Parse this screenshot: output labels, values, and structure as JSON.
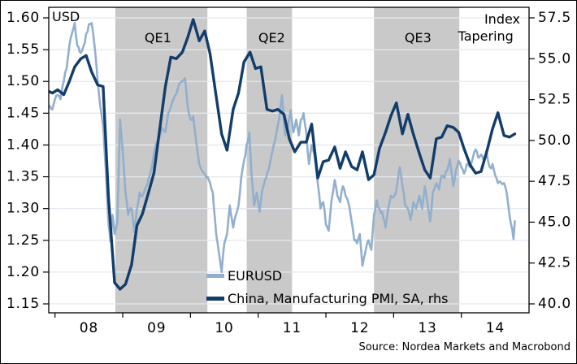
{
  "axis_units": {
    "left": "USD",
    "right": "Index"
  },
  "source": "Source: Nordea Markets and Macrobond",
  "legend": [
    {
      "label": "EURUSD",
      "color": "#92AFCE"
    },
    {
      "label": "China, Manufacturing PMI, SA, rhs",
      "color": "#123D6B"
    }
  ],
  "annotations": [
    {
      "label": "QE1",
      "x_year": 2009.52
    },
    {
      "label": "QE2",
      "x_year": 2011.2
    },
    {
      "label": "QE3",
      "x_year": 2013.36
    },
    {
      "label": "Tapering",
      "x_year": 2014.36
    }
  ],
  "colors": {
    "eurusd_line": "#92AFCE",
    "pmi_line": "#123D6B",
    "shading": "#C9C9C9",
    "gridline": "#E3E9EF",
    "axis": "#000000",
    "background": "#FFFFFF"
  },
  "chart_data": {
    "type": "line",
    "title": "",
    "grid": true,
    "left_axis": {
      "unit": "USD",
      "min": 1.15,
      "max": 1.6,
      "step": 0.05,
      "tick_labels": [
        "1.60",
        "1.55",
        "1.50",
        "1.45",
        "1.40",
        "1.35",
        "1.30",
        "1.25",
        "1.20",
        "1.15"
      ]
    },
    "right_axis": {
      "unit": "Index",
      "min": 40.0,
      "max": 57.5,
      "step": 2.5,
      "tick_labels": [
        "57.5",
        "55.0",
        "52.5",
        "50.0",
        "47.5",
        "45.0",
        "42.5",
        "40.0"
      ]
    },
    "x_axis": {
      "domain_years": [
        2007.91,
        2015.0
      ],
      "tick_years": [
        2008,
        2009,
        2010,
        2011,
        2012,
        2013,
        2014
      ],
      "tick_labels": [
        "08",
        "09",
        "10",
        "11",
        "12",
        "13",
        "14"
      ]
    },
    "shaded_periods": [
      {
        "label": "QE1",
        "from": 2008.89,
        "to": 2010.25
      },
      {
        "label": "QE2",
        "from": 2010.83,
        "to": 2011.5
      },
      {
        "label": "QE3",
        "from": 2012.71,
        "to": 2013.97
      }
    ],
    "series": [
      {
        "name": "EURUSD",
        "axis": "left",
        "color": "#92AFCE",
        "width": 2.6,
        "noisy": true,
        "points": [
          [
            2007.91,
            1.462
          ],
          [
            2007.96,
            1.456
          ],
          [
            2008.0,
            1.472
          ],
          [
            2008.04,
            1.478
          ],
          [
            2008.08,
            1.472
          ],
          [
            2008.13,
            1.5
          ],
          [
            2008.17,
            1.52
          ],
          [
            2008.21,
            1.555
          ],
          [
            2008.25,
            1.575
          ],
          [
            2008.29,
            1.592
          ],
          [
            2008.33,
            1.556
          ],
          [
            2008.38,
            1.545
          ],
          [
            2008.42,
            1.555
          ],
          [
            2008.46,
            1.575
          ],
          [
            2008.5,
            1.59
          ],
          [
            2008.54,
            1.592
          ],
          [
            2008.58,
            1.56
          ],
          [
            2008.63,
            1.5
          ],
          [
            2008.67,
            1.46
          ],
          [
            2008.71,
            1.43
          ],
          [
            2008.75,
            1.36
          ],
          [
            2008.79,
            1.275
          ],
          [
            2008.82,
            1.248
          ],
          [
            2008.85,
            1.29
          ],
          [
            2008.88,
            1.26
          ],
          [
            2008.92,
            1.28
          ],
          [
            2008.96,
            1.44
          ],
          [
            2009.0,
            1.39
          ],
          [
            2009.04,
            1.325
          ],
          [
            2009.08,
            1.29
          ],
          [
            2009.13,
            1.3
          ],
          [
            2009.17,
            1.263
          ],
          [
            2009.21,
            1.3
          ],
          [
            2009.25,
            1.325
          ],
          [
            2009.29,
            1.32
          ],
          [
            2009.33,
            1.33
          ],
          [
            2009.38,
            1.345
          ],
          [
            2009.42,
            1.36
          ],
          [
            2009.46,
            1.385
          ],
          [
            2009.5,
            1.403
          ],
          [
            2009.54,
            1.41
          ],
          [
            2009.58,
            1.427
          ],
          [
            2009.63,
            1.42
          ],
          [
            2009.67,
            1.45
          ],
          [
            2009.71,
            1.46
          ],
          [
            2009.75,
            1.472
          ],
          [
            2009.79,
            1.48
          ],
          [
            2009.83,
            1.495
          ],
          [
            2009.88,
            1.5
          ],
          [
            2009.92,
            1.505
          ],
          [
            2009.96,
            1.46
          ],
          [
            2010.0,
            1.44
          ],
          [
            2010.04,
            1.445
          ],
          [
            2010.08,
            1.41
          ],
          [
            2010.13,
            1.37
          ],
          [
            2010.17,
            1.36
          ],
          [
            2010.21,
            1.355
          ],
          [
            2010.25,
            1.35
          ],
          [
            2010.29,
            1.34
          ],
          [
            2010.33,
            1.325
          ],
          [
            2010.38,
            1.26
          ],
          [
            2010.42,
            1.23
          ],
          [
            2010.46,
            1.2
          ],
          [
            2010.5,
            1.245
          ],
          [
            2010.54,
            1.26
          ],
          [
            2010.58,
            1.305
          ],
          [
            2010.63,
            1.27
          ],
          [
            2010.67,
            1.29
          ],
          [
            2010.71,
            1.305
          ],
          [
            2010.75,
            1.35
          ],
          [
            2010.79,
            1.375
          ],
          [
            2010.83,
            1.4
          ],
          [
            2010.87,
            1.42
          ],
          [
            2010.9,
            1.355
          ],
          [
            2010.94,
            1.305
          ],
          [
            2010.98,
            1.325
          ],
          [
            2011.02,
            1.295
          ],
          [
            2011.06,
            1.33
          ],
          [
            2011.1,
            1.345
          ],
          [
            2011.15,
            1.36
          ],
          [
            2011.19,
            1.38
          ],
          [
            2011.23,
            1.4
          ],
          [
            2011.27,
            1.42
          ],
          [
            2011.31,
            1.44
          ],
          [
            2011.35,
            1.478
          ],
          [
            2011.4,
            1.415
          ],
          [
            2011.44,
            1.43
          ],
          [
            2011.48,
            1.455
          ],
          [
            2011.52,
            1.42
          ],
          [
            2011.56,
            1.44
          ],
          [
            2011.6,
            1.415
          ],
          [
            2011.63,
            1.44
          ],
          [
            2011.67,
            1.45
          ],
          [
            2011.71,
            1.42
          ],
          [
            2011.75,
            1.37
          ],
          [
            2011.79,
            1.4
          ],
          [
            2011.83,
            1.385
          ],
          [
            2011.88,
            1.34
          ],
          [
            2011.92,
            1.3
          ],
          [
            2011.96,
            1.31
          ],
          [
            2012.0,
            1.275
          ],
          [
            2012.04,
            1.265
          ],
          [
            2012.08,
            1.31
          ],
          [
            2012.13,
            1.345
          ],
          [
            2012.17,
            1.32
          ],
          [
            2012.21,
            1.31
          ],
          [
            2012.25,
            1.335
          ],
          [
            2012.29,
            1.32
          ],
          [
            2012.33,
            1.31
          ],
          [
            2012.38,
            1.28
          ],
          [
            2012.42,
            1.25
          ],
          [
            2012.46,
            1.245
          ],
          [
            2012.5,
            1.26
          ],
          [
            2012.54,
            1.21
          ],
          [
            2012.58,
            1.23
          ],
          [
            2012.63,
            1.25
          ],
          [
            2012.67,
            1.235
          ],
          [
            2012.71,
            1.29
          ],
          [
            2012.75,
            1.313
          ],
          [
            2012.79,
            1.3
          ],
          [
            2012.83,
            1.295
          ],
          [
            2012.88,
            1.27
          ],
          [
            2012.92,
            1.3
          ],
          [
            2012.96,
            1.32
          ],
          [
            2013.0,
            1.318
          ],
          [
            2013.04,
            1.33
          ],
          [
            2013.09,
            1.365
          ],
          [
            2013.13,
            1.335
          ],
          [
            2013.17,
            1.305
          ],
          [
            2013.21,
            1.3
          ],
          [
            2013.25,
            1.282
          ],
          [
            2013.29,
            1.31
          ],
          [
            2013.33,
            1.3
          ],
          [
            2013.38,
            1.32
          ],
          [
            2013.42,
            1.3
          ],
          [
            2013.46,
            1.335
          ],
          [
            2013.5,
            1.308
          ],
          [
            2013.54,
            1.28
          ],
          [
            2013.58,
            1.325
          ],
          [
            2013.63,
            1.34
          ],
          [
            2013.67,
            1.33
          ],
          [
            2013.71,
            1.352
          ],
          [
            2013.75,
            1.348
          ],
          [
            2013.79,
            1.36
          ],
          [
            2013.83,
            1.378
          ],
          [
            2013.88,
            1.335
          ],
          [
            2013.92,
            1.36
          ],
          [
            2013.96,
            1.375
          ],
          [
            2014.0,
            1.365
          ],
          [
            2014.04,
            1.355
          ],
          [
            2014.08,
            1.37
          ],
          [
            2014.13,
            1.365
          ],
          [
            2014.17,
            1.38
          ],
          [
            2014.21,
            1.393
          ],
          [
            2014.25,
            1.38
          ],
          [
            2014.29,
            1.385
          ],
          [
            2014.33,
            1.375
          ],
          [
            2014.37,
            1.39
          ],
          [
            2014.42,
            1.365
          ],
          [
            2014.46,
            1.37
          ],
          [
            2014.5,
            1.352
          ],
          [
            2014.54,
            1.34
          ],
          [
            2014.58,
            1.342
          ],
          [
            2014.63,
            1.34
          ],
          [
            2014.67,
            1.325
          ],
          [
            2014.71,
            1.29
          ],
          [
            2014.75,
            1.268
          ],
          [
            2014.77,
            1.252
          ],
          [
            2014.79,
            1.28
          ]
        ]
      },
      {
        "name": "China, Manufacturing PMI, SA, rhs",
        "axis": "right",
        "color": "#123D6B",
        "width": 3.4,
        "noisy": false,
        "points": [
          [
            2007.91,
            53.0
          ],
          [
            2007.96,
            52.9
          ],
          [
            2008.04,
            53.1
          ],
          [
            2008.13,
            52.8
          ],
          [
            2008.21,
            53.6
          ],
          [
            2008.29,
            54.5
          ],
          [
            2008.38,
            55.0
          ],
          [
            2008.46,
            55.2
          ],
          [
            2008.54,
            54.2
          ],
          [
            2008.63,
            53.4
          ],
          [
            2008.71,
            53.3
          ],
          [
            2008.79,
            46.5
          ],
          [
            2008.88,
            41.3
          ],
          [
            2008.96,
            40.9
          ],
          [
            2009.04,
            41.2
          ],
          [
            2009.13,
            42.4
          ],
          [
            2009.21,
            44.8
          ],
          [
            2009.29,
            45.5
          ],
          [
            2009.38,
            46.8
          ],
          [
            2009.46,
            48.0
          ],
          [
            2009.54,
            50.5
          ],
          [
            2009.63,
            53.3
          ],
          [
            2009.71,
            55.1
          ],
          [
            2009.79,
            55.0
          ],
          [
            2009.88,
            55.4
          ],
          [
            2009.96,
            56.3
          ],
          [
            2010.04,
            57.4
          ],
          [
            2010.13,
            56.1
          ],
          [
            2010.21,
            56.7
          ],
          [
            2010.29,
            55.3
          ],
          [
            2010.38,
            52.7
          ],
          [
            2010.46,
            50.4
          ],
          [
            2010.54,
            49.4
          ],
          [
            2010.63,
            51.9
          ],
          [
            2010.71,
            52.9
          ],
          [
            2010.79,
            54.8
          ],
          [
            2010.88,
            55.4
          ],
          [
            2010.96,
            54.4
          ],
          [
            2011.04,
            54.5
          ],
          [
            2011.13,
            51.9
          ],
          [
            2011.21,
            51.8
          ],
          [
            2011.29,
            51.9
          ],
          [
            2011.38,
            51.6
          ],
          [
            2011.46,
            50.1
          ],
          [
            2011.54,
            49.3
          ],
          [
            2011.63,
            49.9
          ],
          [
            2011.71,
            49.9
          ],
          [
            2011.79,
            51.0
          ],
          [
            2011.88,
            47.7
          ],
          [
            2011.96,
            48.7
          ],
          [
            2012.04,
            48.8
          ],
          [
            2012.13,
            49.6
          ],
          [
            2012.21,
            48.3
          ],
          [
            2012.29,
            49.3
          ],
          [
            2012.38,
            48.4
          ],
          [
            2012.46,
            48.2
          ],
          [
            2012.54,
            49.3
          ],
          [
            2012.63,
            47.6
          ],
          [
            2012.71,
            47.9
          ],
          [
            2012.79,
            49.5
          ],
          [
            2012.88,
            50.5
          ],
          [
            2012.96,
            51.5
          ],
          [
            2013.04,
            52.3
          ],
          [
            2013.13,
            50.4
          ],
          [
            2013.21,
            51.6
          ],
          [
            2013.29,
            50.4
          ],
          [
            2013.38,
            49.2
          ],
          [
            2013.46,
            48.2
          ],
          [
            2013.54,
            47.7
          ],
          [
            2013.63,
            50.1
          ],
          [
            2013.71,
            50.2
          ],
          [
            2013.79,
            50.9
          ],
          [
            2013.88,
            50.8
          ],
          [
            2013.96,
            50.5
          ],
          [
            2014.04,
            49.5
          ],
          [
            2014.13,
            48.5
          ],
          [
            2014.21,
            48.0
          ],
          [
            2014.29,
            48.1
          ],
          [
            2014.38,
            49.4
          ],
          [
            2014.46,
            50.7
          ],
          [
            2014.54,
            51.7
          ],
          [
            2014.63,
            50.3
          ],
          [
            2014.71,
            50.2
          ],
          [
            2014.79,
            50.4
          ]
        ]
      }
    ]
  }
}
